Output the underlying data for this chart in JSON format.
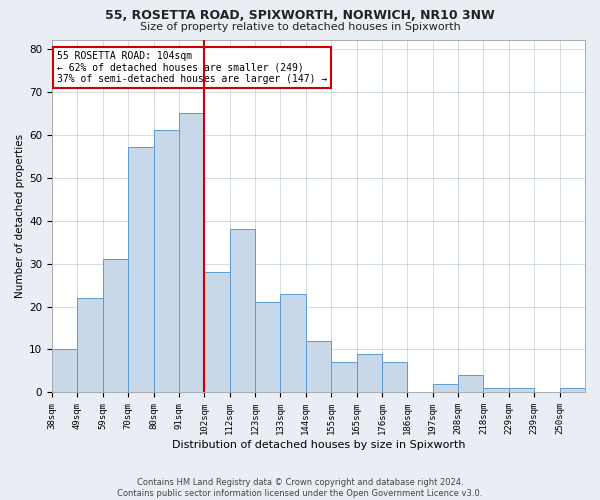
{
  "title1": "55, ROSETTA ROAD, SPIXWORTH, NORWICH, NR10 3NW",
  "title2": "Size of property relative to detached houses in Spixworth",
  "xlabel": "Distribution of detached houses by size in Spixworth",
  "ylabel": "Number of detached properties",
  "footnote1": "Contains HM Land Registry data © Crown copyright and database right 2024.",
  "footnote2": "Contains public sector information licensed under the Open Government Licence v3.0.",
  "annotation_line1": "55 ROSETTA ROAD: 104sqm",
  "annotation_line2": "← 62% of detached houses are smaller (249)",
  "annotation_line3": "37% of semi-detached houses are larger (147) →",
  "bar_labels": [
    "38sqm",
    "49sqm",
    "59sqm",
    "70sqm",
    "80sqm",
    "91sqm",
    "102sqm",
    "112sqm",
    "123sqm",
    "133sqm",
    "144sqm",
    "155sqm",
    "165sqm",
    "176sqm",
    "186sqm",
    "197sqm",
    "208sqm",
    "218sqm",
    "229sqm",
    "239sqm",
    "250sqm"
  ],
  "values": [
    10,
    22,
    31,
    57,
    61,
    65,
    28,
    38,
    21,
    23,
    12,
    7,
    9,
    7,
    0,
    2,
    4,
    1,
    1,
    0,
    1
  ],
  "bar_color": "#c8d8e8",
  "bar_edge_color": "#5b9bd5",
  "marker_value": 102,
  "marker_bin_index": 6,
  "marker_color": "#cc0000",
  "ylim": [
    0,
    82
  ],
  "yticks": [
    0,
    10,
    20,
    30,
    40,
    50,
    60,
    70,
    80
  ],
  "background_color": "#e8eef4",
  "plot_background": "#ffffff",
  "grid_color": "#c0ccd8",
  "title_fontsize": 9,
  "subtitle_fontsize": 8
}
